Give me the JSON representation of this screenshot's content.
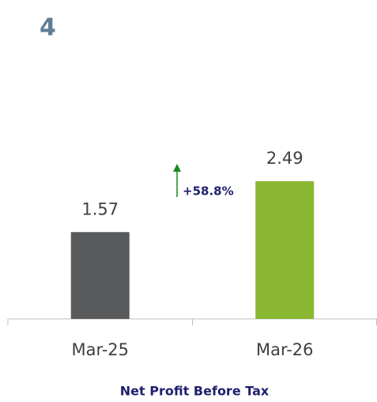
{
  "chart_data": {
    "type": "bar",
    "label": "4",
    "title": "Net Profit Before Tax",
    "categories": [
      "Mar-25",
      "Mar-26"
    ],
    "values": [
      1.57,
      2.49
    ],
    "colors": [
      "#58595b",
      "#8ab833"
    ],
    "annotations": [
      {
        "text": "+58.8%",
        "color": "#1f1f6e",
        "arrow_color": "#1a8a1a"
      }
    ]
  }
}
